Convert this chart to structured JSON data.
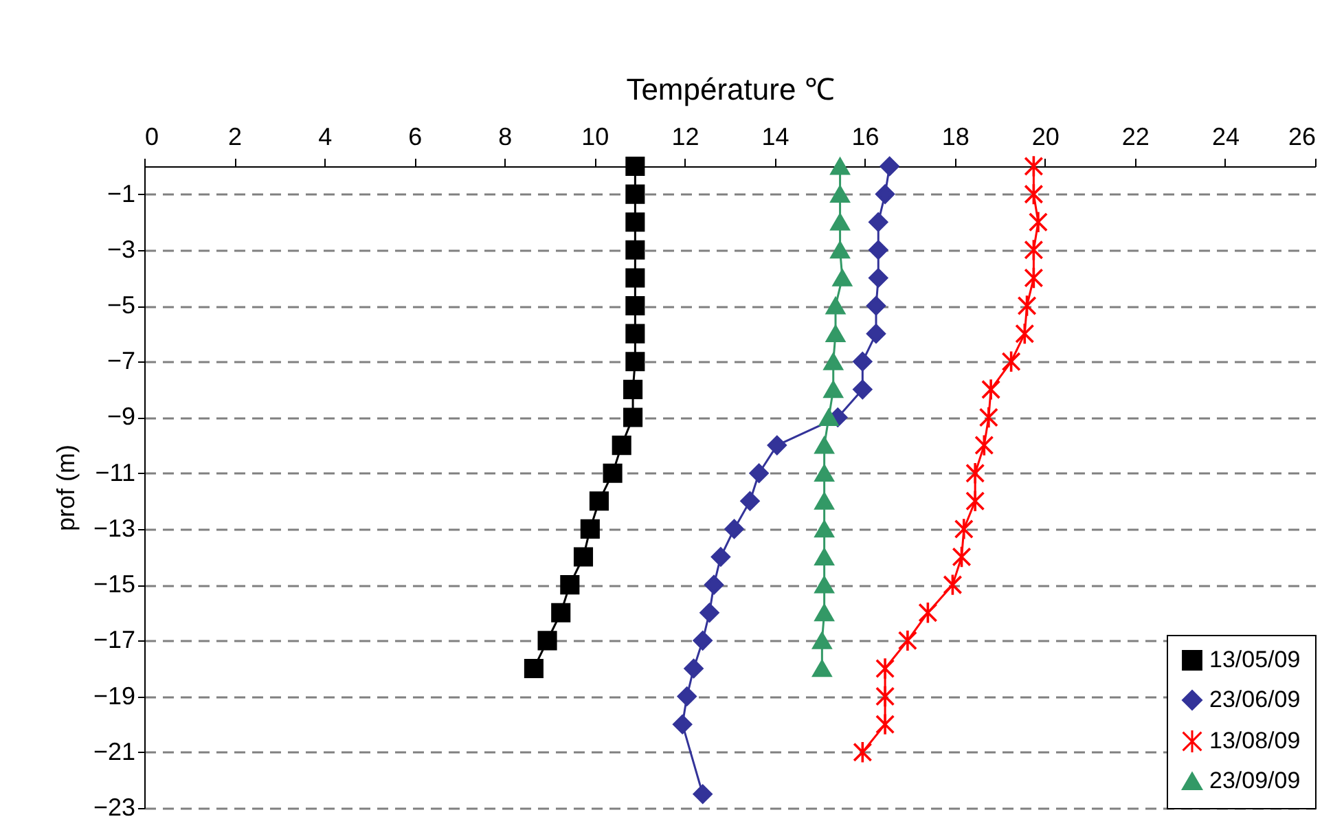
{
  "chart_data": {
    "type": "line",
    "xlabel": "Température  ℃",
    "ylabel": "prof (m)",
    "xlim": [
      0,
      26
    ],
    "xticks": [
      0,
      2,
      4,
      6,
      8,
      10,
      12,
      14,
      16,
      18,
      20,
      22,
      24,
      26
    ],
    "ylim": [
      -23,
      0
    ],
    "yticks": [
      -1,
      -3,
      -5,
      -7,
      -9,
      -11,
      -13,
      -15,
      -17,
      -19,
      -21,
      -23
    ],
    "grid": "y",
    "legend": "bottom right",
    "line_style": "solid",
    "series": [
      {
        "name": "13/05/09",
        "color": "#000000",
        "marker": "square",
        "x": [
          10.9,
          10.9,
          10.9,
          10.9,
          10.9,
          10.9,
          10.9,
          10.9,
          10.85,
          10.85,
          10.6,
          10.4,
          10.1,
          9.9,
          9.75,
          9.45,
          9.25,
          8.95,
          8.65
        ],
        "values": [
          0,
          -1,
          -2,
          -3,
          -4,
          -5,
          -6,
          -7,
          -8,
          -9,
          -10,
          -11,
          -12,
          -13,
          -14,
          -15,
          -16,
          -17,
          -18
        ]
      },
      {
        "name": "23/06/09",
        "color": "#333399",
        "marker": "diamond",
        "x": [
          16.55,
          16.45,
          16.3,
          16.3,
          16.3,
          16.25,
          16.25,
          15.95,
          15.95,
          15.4,
          14.05,
          13.65,
          13.45,
          13.1,
          12.8,
          12.65,
          12.55,
          12.4,
          12.2,
          12.05,
          11.95,
          12.4
        ],
        "values": [
          0,
          -1,
          -2,
          -3,
          -4,
          -5,
          -6,
          -7,
          -8,
          -9,
          -10,
          -11,
          -12,
          -13,
          -14,
          -15,
          -16,
          -17,
          -18,
          -19,
          -20,
          -22.5
        ]
      },
      {
        "name": "13/08/09",
        "color": "#ff0000",
        "marker": "cross",
        "x": [
          19.75,
          19.75,
          19.85,
          19.75,
          19.75,
          19.6,
          19.55,
          19.25,
          18.8,
          18.75,
          18.65,
          18.45,
          18.45,
          18.2,
          18.15,
          17.95,
          17.4,
          16.95,
          16.45,
          16.45,
          16.45,
          15.95
        ],
        "values": [
          0,
          -1,
          -2,
          -3,
          -4,
          -5,
          -6,
          -7,
          -8,
          -9,
          -10,
          -11,
          -12,
          -13,
          -14,
          -15,
          -16,
          -17,
          -18,
          -19,
          -20,
          -21
        ]
      },
      {
        "name": "23/09/09",
        "color": "#339966",
        "marker": "triangle",
        "x": [
          15.45,
          15.45,
          15.45,
          15.45,
          15.5,
          15.35,
          15.35,
          15.3,
          15.3,
          15.2,
          15.1,
          15.1,
          15.1,
          15.1,
          15.1,
          15.1,
          15.1,
          15.05,
          15.05
        ],
        "values": [
          0,
          -1,
          -2,
          -3,
          -4,
          -5,
          -6,
          -7,
          -8,
          -9,
          -10,
          -11,
          -12,
          -13,
          -14,
          -15,
          -16,
          -17,
          -18
        ]
      }
    ]
  }
}
